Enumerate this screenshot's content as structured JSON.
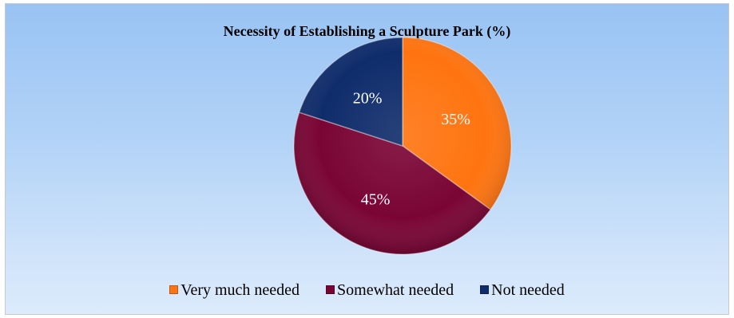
{
  "chart_data": {
    "type": "pie",
    "title": "Necessity of Establishing a Sculpture Park (%)",
    "legend_position": "bottom",
    "slices": [
      {
        "name": "Very much needed",
        "value": 35,
        "label": "35%",
        "color": "#ff7410"
      },
      {
        "name": "Somewhat needed",
        "value": 45,
        "label": "45%",
        "color": "#7a0535"
      },
      {
        "name": "Not needed",
        "value": 20,
        "label": "20%",
        "color": "#0f2c6b"
      }
    ]
  }
}
